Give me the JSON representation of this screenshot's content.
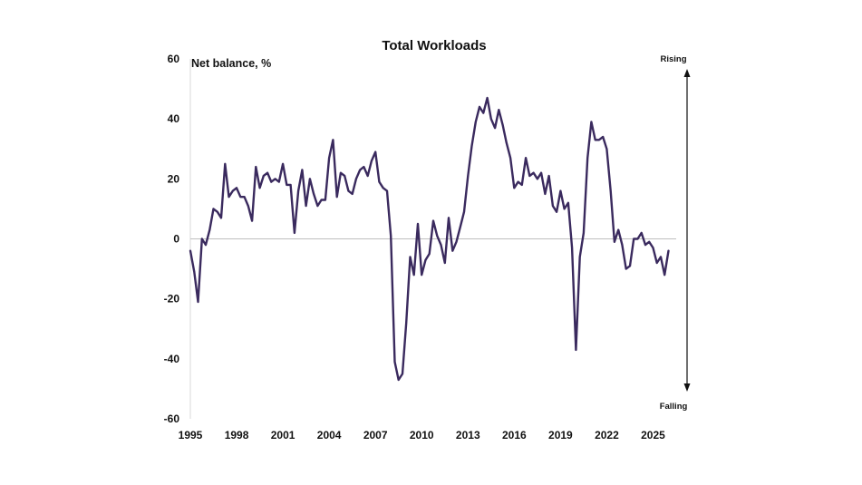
{
  "chart_data": {
    "type": "line",
    "title": "Total Workloads",
    "ylabel": "Net balance, %",
    "xlabel": "",
    "ylim": [
      -60,
      60
    ],
    "xlim": [
      1995,
      2026.5
    ],
    "yticks": [
      -60,
      -40,
      -20,
      0,
      20,
      40,
      60
    ],
    "xticks": [
      1995,
      1998,
      2001,
      2004,
      2007,
      2010,
      2013,
      2016,
      2019,
      2022,
      2025
    ],
    "annotations": {
      "top": "Rising",
      "bottom": "Falling"
    },
    "grid": false,
    "zero_line": true,
    "line_color": "#3a2a5e",
    "series": [
      {
        "x": [
          1995.0,
          1995.25,
          1995.5,
          1995.75,
          1996.0,
          1996.25,
          1996.5,
          1996.75,
          1997.0,
          1997.25,
          1997.5,
          1997.75,
          1998.0,
          1998.25,
          1998.5,
          1998.75,
          1999.0,
          1999.25,
          1999.5,
          1999.75,
          2000.0,
          2000.25,
          2000.5,
          2000.75,
          2001.0,
          2001.25,
          2001.5,
          2001.75,
          2002.0,
          2002.25,
          2002.5,
          2002.75,
          2003.0,
          2003.25,
          2003.5,
          2003.75,
          2004.0,
          2004.25,
          2004.5,
          2004.75,
          2005.0,
          2005.25,
          2005.5,
          2005.75,
          2006.0,
          2006.25,
          2006.5,
          2006.75,
          2007.0,
          2007.25,
          2007.5,
          2007.75,
          2008.0,
          2008.25,
          2008.5,
          2008.75,
          2009.0,
          2009.25,
          2009.5,
          2009.75,
          2010.0,
          2010.25,
          2010.5,
          2010.75,
          2011.0,
          2011.25,
          2011.5,
          2011.75,
          2012.0,
          2012.25,
          2012.5,
          2012.75,
          2013.0,
          2013.25,
          2013.5,
          2013.75,
          2014.0,
          2014.25,
          2014.5,
          2014.75,
          2015.0,
          2015.25,
          2015.5,
          2015.75,
          2016.0,
          2016.25,
          2016.5,
          2016.75,
          2017.0,
          2017.25,
          2017.5,
          2017.75,
          2018.0,
          2018.25,
          2018.5,
          2018.75,
          2019.0,
          2019.25,
          2019.5,
          2019.75,
          2020.0,
          2020.25,
          2020.5,
          2020.75,
          2021.0,
          2021.25,
          2021.5,
          2021.75,
          2022.0,
          2022.25,
          2022.5,
          2022.75,
          2023.0,
          2023.25,
          2023.5,
          2023.75,
          2024.0,
          2024.25,
          2024.5,
          2024.75,
          2025.0,
          2025.25,
          2025.5,
          2025.75,
          2026.0
        ],
        "values": [
          -4,
          -11,
          -21,
          0,
          -2,
          3,
          10,
          9,
          7,
          25,
          14,
          16,
          17,
          14,
          14,
          11,
          6,
          24,
          17,
          21,
          22,
          19,
          20,
          19,
          25,
          18,
          18,
          2,
          16,
          23,
          11,
          20,
          15,
          11,
          13,
          13,
          27,
          33,
          14,
          22,
          21,
          16,
          15,
          20,
          23,
          24,
          21,
          26,
          29,
          19,
          17,
          16,
          1,
          -41,
          -47,
          -45,
          -28,
          -6,
          -12,
          5,
          -12,
          -7,
          -5,
          6,
          1,
          -2,
          -8,
          7,
          -4,
          -1,
          4,
          9,
          21,
          31,
          39,
          44,
          42,
          47,
          40,
          37,
          43,
          38,
          32,
          27,
          17,
          19,
          18,
          27,
          21,
          22,
          20,
          22,
          15,
          21,
          11,
          9,
          16,
          10,
          12,
          -3,
          -37,
          -6,
          2,
          27,
          39,
          33,
          33,
          34,
          30,
          16,
          -1,
          3,
          -2,
          -10,
          -9,
          0,
          0,
          2,
          -2,
          -1,
          -3,
          -8,
          -6,
          -12,
          -4
        ]
      }
    ]
  }
}
